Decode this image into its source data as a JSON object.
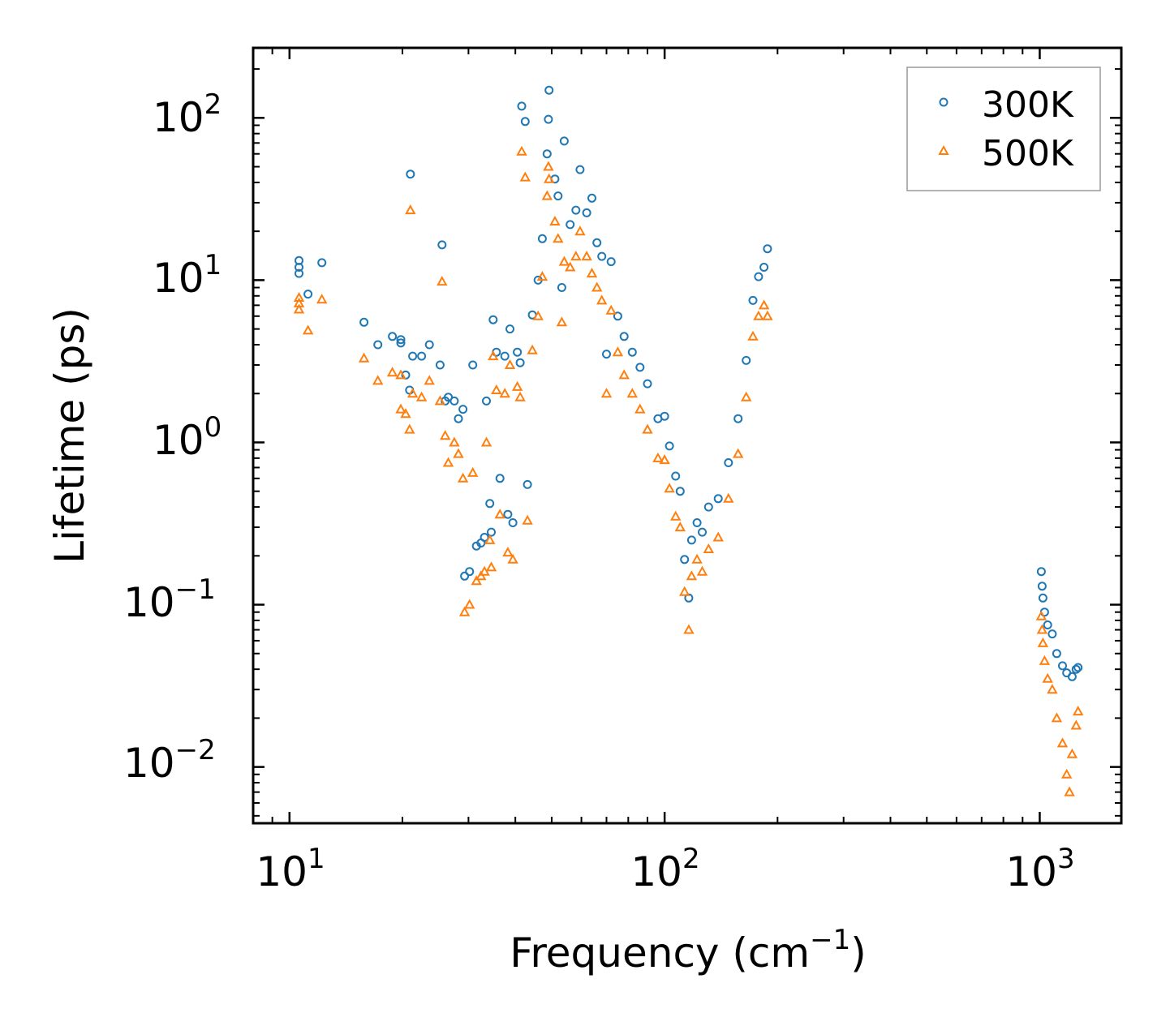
{
  "chart_data": {
    "type": "scatter",
    "title": "",
    "xlabel": "Frequency (cm",
    "xlabel_sup": "−1",
    "xlabel_end": ")",
    "ylabel": "Lifetime (ps)",
    "xscale": "log",
    "yscale": "log",
    "xlim": [
      8,
      1650
    ],
    "ylim": [
      0.0045,
      270
    ],
    "x_ticks": [
      {
        "value": 10,
        "base": "10",
        "exp": "1"
      },
      {
        "value": 100,
        "base": "10",
        "exp": "2"
      },
      {
        "value": 1000,
        "base": "10",
        "exp": "3"
      }
    ],
    "y_ticks": [
      {
        "value": 0.01,
        "base": "10",
        "exp": "−2"
      },
      {
        "value": 0.1,
        "base": "10",
        "exp": "−1"
      },
      {
        "value": 1,
        "base": "10",
        "exp": "0"
      },
      {
        "value": 10,
        "base": "10",
        "exp": "1"
      },
      {
        "value": 100,
        "base": "10",
        "exp": "2"
      }
    ],
    "legend_position": "top-right",
    "series": [
      {
        "name": "300K",
        "marker": "circle",
        "color": "#1f77b4",
        "points": [
          [
            10.6,
            13.2
          ],
          [
            10.6,
            12.0
          ],
          [
            10.6,
            11.0
          ],
          [
            11.2,
            8.2
          ],
          [
            12.2,
            12.8
          ],
          [
            15.8,
            5.5
          ],
          [
            17.2,
            4.0
          ],
          [
            18.8,
            4.5
          ],
          [
            19.8,
            4.3
          ],
          [
            19.8,
            4.1
          ],
          [
            20.4,
            2.6
          ],
          [
            20.9,
            2.1
          ],
          [
            21.0,
            45.0
          ],
          [
            21.3,
            3.4
          ],
          [
            22.5,
            3.4
          ],
          [
            23.6,
            4.0
          ],
          [
            25.2,
            3.0
          ],
          [
            25.5,
            16.5
          ],
          [
            26.0,
            1.8
          ],
          [
            26.5,
            1.9
          ],
          [
            27.5,
            1.8
          ],
          [
            28.2,
            1.4
          ],
          [
            29.0,
            1.6
          ],
          [
            29.3,
            0.15
          ],
          [
            30.2,
            0.16
          ],
          [
            30.8,
            3.0
          ],
          [
            31.5,
            0.23
          ],
          [
            32.4,
            0.24
          ],
          [
            33.1,
            0.26
          ],
          [
            33.5,
            1.8
          ],
          [
            34.2,
            0.42
          ],
          [
            34.5,
            0.28
          ],
          [
            34.9,
            5.7
          ],
          [
            35.6,
            3.6
          ],
          [
            36.4,
            0.6
          ],
          [
            37.5,
            3.4
          ],
          [
            38.2,
            0.36
          ],
          [
            38.7,
            5.0
          ],
          [
            39.4,
            0.32
          ],
          [
            40.5,
            3.6
          ],
          [
            41.2,
            3.1
          ],
          [
            41.6,
            118.0
          ],
          [
            42.5,
            95.0
          ],
          [
            43.1,
            0.55
          ],
          [
            44.4,
            6.1
          ],
          [
            46.0,
            10.0
          ],
          [
            47.2,
            18.0
          ],
          [
            48.6,
            60.0
          ],
          [
            49.0,
            98.0
          ],
          [
            49.2,
            148.0
          ],
          [
            51.0,
            42.0
          ],
          [
            52.0,
            33.0
          ],
          [
            53.2,
            9.0
          ],
          [
            54.0,
            72.0
          ],
          [
            56.0,
            22.0
          ],
          [
            58.0,
            27.0
          ],
          [
            59.5,
            48.0
          ],
          [
            62.0,
            26.0
          ],
          [
            64.0,
            32.0
          ],
          [
            66.0,
            17.0
          ],
          [
            68.0,
            14.0
          ],
          [
            70.0,
            3.5
          ],
          [
            72.0,
            13.0
          ],
          [
            75.0,
            6.0
          ],
          [
            78.0,
            4.5
          ],
          [
            82.0,
            3.6
          ],
          [
            86.0,
            2.9
          ],
          [
            90.0,
            2.3
          ],
          [
            96.0,
            1.4
          ],
          [
            100.0,
            1.45
          ],
          [
            103.0,
            0.95
          ],
          [
            107.0,
            0.62
          ],
          [
            110.0,
            0.5
          ],
          [
            113.0,
            0.19
          ],
          [
            116.0,
            0.11
          ],
          [
            118.0,
            0.25
          ],
          [
            122.0,
            0.32
          ],
          [
            126.0,
            0.28
          ],
          [
            131.0,
            0.4
          ],
          [
            139.0,
            0.45
          ],
          [
            148.0,
            0.75
          ],
          [
            157.0,
            1.4
          ],
          [
            165.0,
            3.2
          ],
          [
            172.0,
            7.5
          ],
          [
            178.0,
            10.5
          ],
          [
            184.0,
            12.0
          ],
          [
            188.0,
            15.6
          ],
          [
            1010,
            0.16
          ],
          [
            1015,
            0.13
          ],
          [
            1020,
            0.11
          ],
          [
            1030,
            0.09
          ],
          [
            1050,
            0.075
          ],
          [
            1080,
            0.066
          ],
          [
            1110,
            0.05
          ],
          [
            1150,
            0.042
          ],
          [
            1180,
            0.038
          ],
          [
            1220,
            0.036
          ],
          [
            1250,
            0.04
          ],
          [
            1265,
            0.041
          ]
        ]
      },
      {
        "name": "500K",
        "marker": "triangle",
        "color": "#ff7f0e",
        "points": [
          [
            10.6,
            7.8
          ],
          [
            10.6,
            7.2
          ],
          [
            10.6,
            6.6
          ],
          [
            11.2,
            4.9
          ],
          [
            12.2,
            7.6
          ],
          [
            15.8,
            3.3
          ],
          [
            17.2,
            2.4
          ],
          [
            18.8,
            2.7
          ],
          [
            19.8,
            2.6
          ],
          [
            19.8,
            1.6
          ],
          [
            20.4,
            1.5
          ],
          [
            20.9,
            1.2
          ],
          [
            21.0,
            27.0
          ],
          [
            21.3,
            2.0
          ],
          [
            22.5,
            1.9
          ],
          [
            23.6,
            2.4
          ],
          [
            25.2,
            1.8
          ],
          [
            25.5,
            9.8
          ],
          [
            26.0,
            1.1
          ],
          [
            26.5,
            0.75
          ],
          [
            27.5,
            1.0
          ],
          [
            28.2,
            0.85
          ],
          [
            29.0,
            0.6
          ],
          [
            29.3,
            0.09
          ],
          [
            30.2,
            0.1
          ],
          [
            30.8,
            0.65
          ],
          [
            31.5,
            0.14
          ],
          [
            32.4,
            0.15
          ],
          [
            33.1,
            0.16
          ],
          [
            33.5,
            1.0
          ],
          [
            34.2,
            0.25
          ],
          [
            34.5,
            0.17
          ],
          [
            34.9,
            3.4
          ],
          [
            35.6,
            2.1
          ],
          [
            36.4,
            0.36
          ],
          [
            37.5,
            2.0
          ],
          [
            38.2,
            0.21
          ],
          [
            38.7,
            3.0
          ],
          [
            39.4,
            0.19
          ],
          [
            40.5,
            2.2
          ],
          [
            41.2,
            1.9
          ],
          [
            41.6,
            62.0
          ],
          [
            42.5,
            43.0
          ],
          [
            43.1,
            0.33
          ],
          [
            44.4,
            3.7
          ],
          [
            46.0,
            6.0
          ],
          [
            47.2,
            10.5
          ],
          [
            48.6,
            33.0
          ],
          [
            49.0,
            50.0
          ],
          [
            49.2,
            42.0
          ],
          [
            51.0,
            23.0
          ],
          [
            52.0,
            18.0
          ],
          [
            53.2,
            5.5
          ],
          [
            54.0,
            13.0
          ],
          [
            56.0,
            12.0
          ],
          [
            58.0,
            14.0
          ],
          [
            59.5,
            20.0
          ],
          [
            62.0,
            14.0
          ],
          [
            64.0,
            11.0
          ],
          [
            66.0,
            9.0
          ],
          [
            68.0,
            7.5
          ],
          [
            70.0,
            2.0
          ],
          [
            72.0,
            6.5
          ],
          [
            75.0,
            3.6
          ],
          [
            78.0,
            2.6
          ],
          [
            82.0,
            2.0
          ],
          [
            86.0,
            1.6
          ],
          [
            90.0,
            1.2
          ],
          [
            96.0,
            0.8
          ],
          [
            100.0,
            0.78
          ],
          [
            103.0,
            0.52
          ],
          [
            107.0,
            0.35
          ],
          [
            110.0,
            0.3
          ],
          [
            113.0,
            0.12
          ],
          [
            116.0,
            0.07
          ],
          [
            118.0,
            0.15
          ],
          [
            122.0,
            0.19
          ],
          [
            126.0,
            0.16
          ],
          [
            131.0,
            0.22
          ],
          [
            139.0,
            0.26
          ],
          [
            148.0,
            0.45
          ],
          [
            157.0,
            0.85
          ],
          [
            165.0,
            1.9
          ],
          [
            172.0,
            4.5
          ],
          [
            178.0,
            6.0
          ],
          [
            184.0,
            7.0
          ],
          [
            188.0,
            6.0
          ],
          [
            1010,
            0.085
          ],
          [
            1015,
            0.07
          ],
          [
            1020,
            0.058
          ],
          [
            1030,
            0.045
          ],
          [
            1050,
            0.035
          ],
          [
            1080,
            0.03
          ],
          [
            1110,
            0.02
          ],
          [
            1150,
            0.014
          ],
          [
            1180,
            0.009
          ],
          [
            1200,
            0.007
          ],
          [
            1220,
            0.012
          ],
          [
            1250,
            0.018
          ],
          [
            1265,
            0.022
          ]
        ]
      }
    ]
  }
}
